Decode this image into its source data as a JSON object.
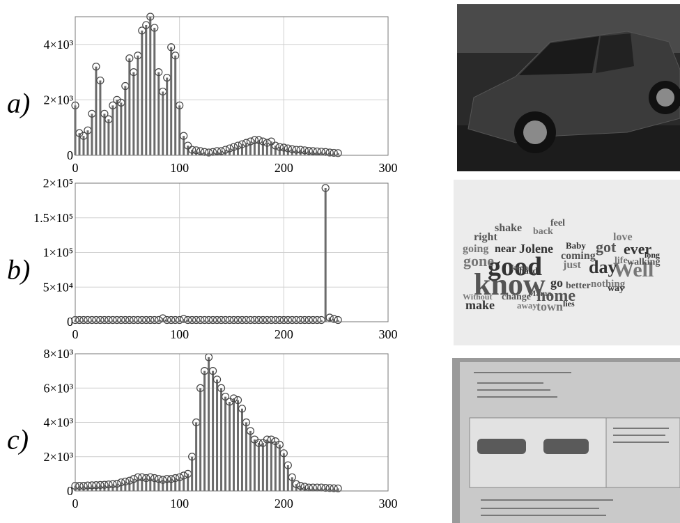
{
  "chart_data": [
    {
      "type": "stem",
      "label": "a)",
      "color": "#6b6b6b",
      "x": [
        0,
        4,
        8,
        12,
        16,
        20,
        24,
        28,
        32,
        36,
        40,
        44,
        48,
        52,
        56,
        60,
        64,
        68,
        72,
        76,
        80,
        84,
        88,
        92,
        96,
        100,
        104,
        108,
        112,
        116,
        120,
        124,
        128,
        132,
        136,
        140,
        144,
        148,
        152,
        156,
        160,
        164,
        168,
        172,
        176,
        180,
        184,
        188,
        192,
        196,
        200,
        204,
        208,
        212,
        216,
        220,
        224,
        228,
        232,
        236,
        240,
        244,
        248,
        252
      ],
      "values": [
        1800,
        800,
        700,
        900,
        1500,
        3200,
        2700,
        1500,
        1300,
        1800,
        2000,
        1900,
        2500,
        3500,
        3000,
        3600,
        4500,
        4700,
        5000,
        4600,
        3000,
        2300,
        2800,
        3900,
        3600,
        1800,
        700,
        350,
        200,
        180,
        150,
        120,
        100,
        120,
        150,
        150,
        200,
        250,
        300,
        350,
        400,
        450,
        500,
        550,
        550,
        500,
        450,
        500,
        350,
        300,
        280,
        250,
        220,
        200,
        200,
        180,
        160,
        150,
        140,
        130,
        120,
        100,
        90,
        80
      ],
      "xlim": [
        0,
        300
      ],
      "ylim": [
        0,
        5000
      ],
      "xticks": [
        0,
        100,
        200,
        300
      ],
      "yticks": [
        0,
        {
          "value": 2000,
          "label": "2×10³"
        },
        {
          "value": 4000,
          "label": "4×10³"
        }
      ],
      "grid": true
    },
    {
      "type": "stem",
      "label": "b)",
      "color": "#6b6b6b",
      "x": [
        0,
        4,
        8,
        12,
        16,
        20,
        24,
        28,
        32,
        36,
        40,
        44,
        48,
        52,
        56,
        60,
        64,
        68,
        72,
        76,
        80,
        84,
        88,
        92,
        96,
        100,
        104,
        108,
        112,
        116,
        120,
        124,
        128,
        132,
        136,
        140,
        144,
        148,
        152,
        156,
        160,
        164,
        168,
        172,
        176,
        180,
        184,
        188,
        192,
        196,
        200,
        204,
        208,
        212,
        216,
        220,
        224,
        228,
        232,
        236,
        240,
        244,
        248,
        252
      ],
      "values": [
        2500,
        2500,
        2500,
        2500,
        2500,
        2500,
        2500,
        2500,
        2500,
        2500,
        2500,
        2500,
        2500,
        2500,
        2500,
        2500,
        2500,
        2500,
        2500,
        2500,
        2500,
        5000,
        2500,
        2500,
        2500,
        2500,
        4000,
        2500,
        2500,
        2500,
        2500,
        2500,
        2500,
        2500,
        2500,
        2500,
        2500,
        2500,
        2500,
        2500,
        2500,
        2500,
        2500,
        2500,
        2500,
        2500,
        2500,
        2500,
        2500,
        2500,
        2500,
        2500,
        2500,
        2500,
        2500,
        2500,
        2500,
        2500,
        2500,
        2500,
        193000,
        6000,
        4000,
        2500
      ],
      "xlim": [
        0,
        300
      ],
      "ylim": [
        0,
        200000
      ],
      "xticks": [
        0,
        100,
        200,
        300
      ],
      "yticks": [
        0,
        {
          "value": 50000,
          "label": "5×10⁴"
        },
        {
          "value": 100000,
          "label": "1×10⁵"
        },
        {
          "value": 150000,
          "label": "1.5×10⁵"
        },
        {
          "value": 200000,
          "label": "2×10⁵"
        }
      ],
      "grid": true
    },
    {
      "type": "stem",
      "label": "c)",
      "color": "#6b6b6b",
      "x": [
        0,
        4,
        8,
        12,
        16,
        20,
        24,
        28,
        32,
        36,
        40,
        44,
        48,
        52,
        56,
        60,
        64,
        68,
        72,
        76,
        80,
        84,
        88,
        92,
        96,
        100,
        104,
        108,
        112,
        116,
        120,
        124,
        128,
        132,
        136,
        140,
        144,
        148,
        152,
        156,
        160,
        164,
        168,
        172,
        176,
        180,
        184,
        188,
        192,
        196,
        200,
        204,
        208,
        212,
        216,
        220,
        224,
        228,
        232,
        236,
        240,
        244,
        248,
        252
      ],
      "values": [
        300,
        300,
        300,
        320,
        330,
        340,
        350,
        360,
        380,
        400,
        420,
        500,
        550,
        600,
        700,
        800,
        800,
        750,
        800,
        750,
        700,
        650,
        700,
        700,
        750,
        800,
        900,
        1000,
        2000,
        4000,
        6000,
        7000,
        7800,
        7000,
        6500,
        6000,
        5500,
        5200,
        5400,
        5300,
        4800,
        4000,
        3500,
        3000,
        2800,
        2800,
        3000,
        3000,
        2900,
        2700,
        2200,
        1500,
        800,
        400,
        300,
        250,
        200,
        200,
        200,
        200,
        180,
        170,
        160,
        150
      ],
      "xlim": [
        0,
        300
      ],
      "ylim": [
        0,
        8000
      ],
      "xticks": [
        0,
        100,
        200,
        300
      ],
      "yticks": [
        0,
        {
          "value": 2000,
          "label": "2×10³"
        },
        {
          "value": 4000,
          "label": "4×10³"
        },
        {
          "value": 6000,
          "label": "6×10³"
        },
        {
          "value": 8000,
          "label": "8×10³"
        }
      ],
      "grid": true
    }
  ],
  "wordcloud": {
    "words": [
      "good",
      "know",
      "Well",
      "day",
      "home",
      "gone",
      "ever",
      "got",
      "town",
      "make",
      "shake",
      "love",
      "Jolene",
      "right",
      "going",
      "near",
      "coming",
      "just",
      "go",
      "better",
      "nothing",
      "way",
      "walking",
      "life",
      "long",
      "change",
      "Without",
      "Baby",
      "feel",
      "back",
      "hard",
      "keep",
      "away",
      "lies",
      "Mama"
    ]
  }
}
